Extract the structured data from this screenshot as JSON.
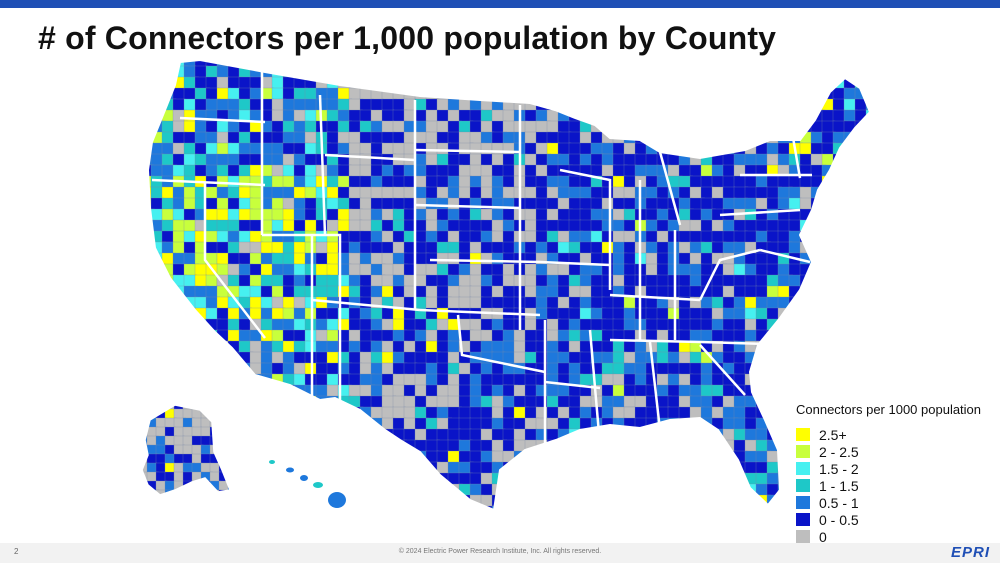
{
  "title": "# of Connectors per 1,000 population by County",
  "legend": {
    "title": "Connectors per 1000 population",
    "items": [
      {
        "label": "2.5+",
        "color": "#ffff00"
      },
      {
        "label": "2 - 2.5",
        "color": "#c8ff3c"
      },
      {
        "label": "1.5 - 2",
        "color": "#46f0f0"
      },
      {
        "label": "1 - 1.5",
        "color": "#1ec8c8"
      },
      {
        "label": "0.5 - 1",
        "color": "#1e78dc"
      },
      {
        "label": "0 - 0.5",
        "color": "#0a14c8"
      },
      {
        "label": "0",
        "color": "#bebebe"
      }
    ]
  },
  "footer": {
    "page_number": "2",
    "copyright": "© 2024 Electric Power Research Institute, Inc. All rights reserved.",
    "logo": "EPRI"
  },
  "colors": {
    "accent": "#1f4fb5",
    "border": "#ffffff"
  }
}
